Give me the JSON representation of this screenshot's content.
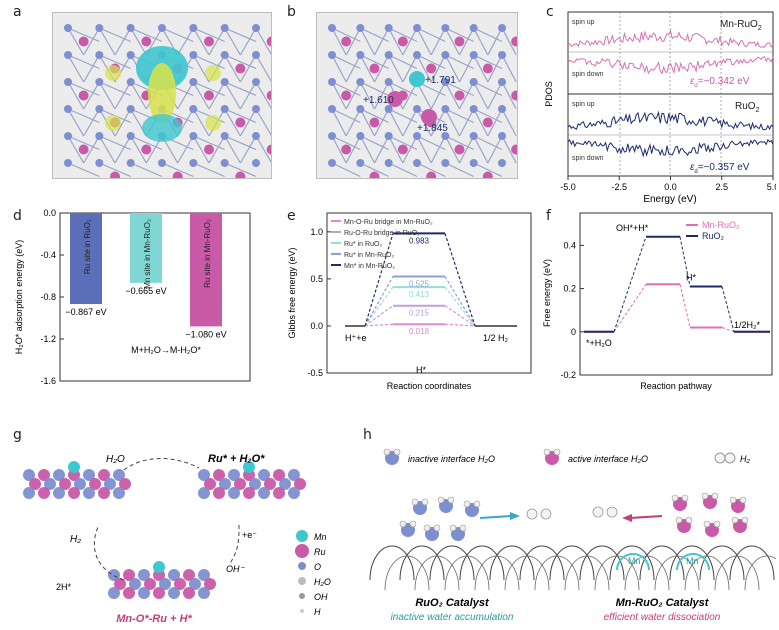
{
  "panels": {
    "a": {
      "label": "a"
    },
    "b": {
      "label": "b",
      "values": [
        "+1.791",
        "+1.610",
        "+1.845"
      ]
    },
    "c": {
      "label": "c",
      "ylabel": "PDOS",
      "xlabel": "Energy (eV)",
      "xticks": [
        "-5.0",
        "-2.5",
        "0.0",
        "2.5",
        "5.0"
      ],
      "top": {
        "name": "Mn-RuO",
        "sub": "2",
        "spin_up": "spin up",
        "spin_down": "spin down",
        "ed_text": "=−0.342 eV",
        "ed_label": "ε",
        "ed_sub": "d"
      },
      "bottom": {
        "name": "RuO",
        "sub": "2",
        "spin_up": "spin up",
        "spin_down": "spin down",
        "ed_text": "=−0.357 eV",
        "ed_label": "ε",
        "ed_sub": "d"
      }
    },
    "d": {
      "label": "d",
      "ylabel": "H₂O* adsorption energy (eV)",
      "yticks": [
        "0.0",
        "-0.4",
        "-0.8",
        "-1.2",
        "-1.6"
      ],
      "equation": "M+H₂O→M-H₂O*",
      "chart_data": {
        "type": "bar",
        "categories": [
          "Ru site in RuO₂",
          "Mn site in Mn-RuO₂",
          "Ru site in Mn-RuO₂"
        ],
        "values": [
          -0.867,
          -0.665,
          -1.08
        ],
        "value_labels": [
          "−0.867 eV",
          "−0.665 eV",
          "−1.080 eV"
        ],
        "colors": [
          "#5b6fb8",
          "#7fd6d2",
          "#c95aa8"
        ],
        "ylim": [
          -1.6,
          0.0
        ]
      }
    },
    "e": {
      "label": "e",
      "ylabel": "Gibbs free energy (eV)",
      "xlabel": "Reaction coordinates",
      "yticks": [
        "1.0",
        "0.5",
        "0.0",
        "-0.5"
      ],
      "left_label": "H⁺+e",
      "right_label": "1/2 H₂",
      "mid_label": "H*",
      "chart_data": {
        "type": "line",
        "series": [
          {
            "name": "Mn-O-Ru bridge in Mn-RuO₂",
            "value": 0.018,
            "label": "0.018",
            "color": "#e08ad0"
          },
          {
            "name": "Ru-O-Ru bridge in RuO₂",
            "value": 0.215,
            "label": "0.215",
            "color": "#c0a0d8"
          },
          {
            "name": "Ru* in RuO₂",
            "value": 0.413,
            "label": "0.413",
            "color": "#8fe0d8"
          },
          {
            "name": "Ru* in Mn-RuO₂",
            "value": 0.525,
            "label": "0.525",
            "color": "#8aa0d8"
          },
          {
            "name": "Mn* in Mn-RuO₂",
            "value": 0.983,
            "label": "0.983",
            "color": "#1d2a6b"
          }
        ],
        "ylim": [
          -0.5,
          1.2
        ]
      }
    },
    "f": {
      "label": "f",
      "ylabel": "Free energy (eV)",
      "xlabel": "Reaction pathway",
      "yticks": [
        "0.4",
        "0.2",
        "0",
        "-0.2"
      ],
      "states": [
        "*+H₂O",
        "OH*+H*",
        "H*",
        "1/2H₂*"
      ],
      "chart_data": {
        "type": "line",
        "series": [
          {
            "name": "Mn-RuO₂",
            "values": [
              0,
              0.22,
              0.02,
              0.0
            ],
            "color": "#e070b0"
          },
          {
            "name": "RuO₂",
            "values": [
              0,
              0.44,
              0.21,
              0.0
            ],
            "color": "#1d2a6b"
          }
        ],
        "ylim": [
          -0.2,
          0.55
        ]
      }
    },
    "g": {
      "label": "g",
      "h2o": "H₂O",
      "top_right": "Ru* + H₂O*",
      "e_minus": "+e⁻",
      "oh_minus": "OH⁻",
      "h2": "H₂",
      "two_h": "2H*",
      "bottom": "Mn-O*-Ru + H*",
      "legend": [
        "Mn",
        "Ru",
        "O",
        "H₂O",
        "OH",
        "H"
      ]
    },
    "h": {
      "label": "h",
      "legend": [
        "inactive interface H₂O",
        "active interface H₂O",
        "H₂"
      ],
      "mn1": "Mn",
      "mn2": "Mn",
      "left_title": "RuO₂ Catalyst",
      "left_sub": "inactive water accumulation",
      "right_title": "Mn-RuO₂ Catalyst",
      "right_sub": "efficient water dissociation"
    }
  }
}
